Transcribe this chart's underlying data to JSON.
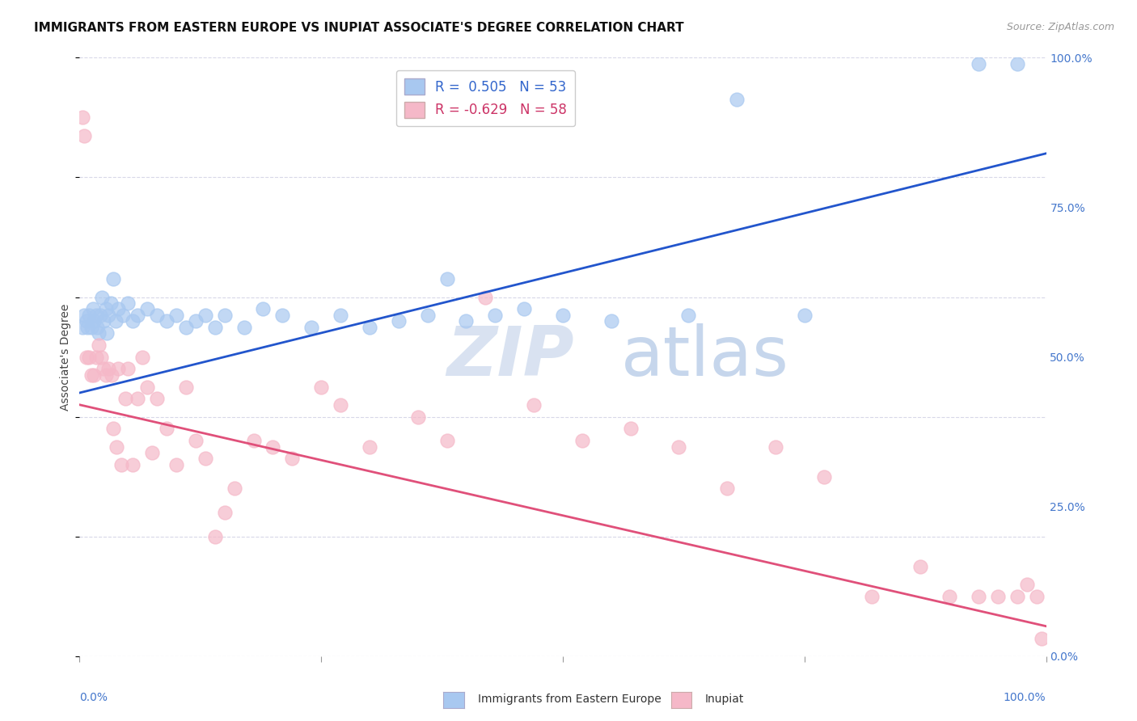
{
  "title": "IMMIGRANTS FROM EASTERN EUROPE VS INUPIAT ASSOCIATE'S DEGREE CORRELATION CHART",
  "source": "Source: ZipAtlas.com",
  "ylabel": "Associate's Degree",
  "legend_label1": "Immigrants from Eastern Europe",
  "legend_label2": "Inupiat",
  "R1": 0.505,
  "N1": 53,
  "R2": -0.629,
  "N2": 58,
  "blue_color": "#a8c8f0",
  "pink_color": "#f5b8c8",
  "blue_line_color": "#2255cc",
  "pink_line_color": "#e0507a",
  "watermark_zip": "ZIP",
  "watermark_atlas": "atlas",
  "blue_scatter_x": [
    0.3,
    0.5,
    0.7,
    0.8,
    1.0,
    1.2,
    1.4,
    1.5,
    1.7,
    1.8,
    2.0,
    2.1,
    2.3,
    2.5,
    2.7,
    2.8,
    3.0,
    3.2,
    3.5,
    3.7,
    4.0,
    4.5,
    5.0,
    5.5,
    6.0,
    7.0,
    8.0,
    9.0,
    10.0,
    11.0,
    12.0,
    13.0,
    14.0,
    15.0,
    17.0,
    19.0,
    21.0,
    24.0,
    27.0,
    30.0,
    33.0,
    36.0,
    38.0,
    40.0,
    43.0,
    46.0,
    50.0,
    55.0,
    63.0,
    68.0,
    75.0,
    93.0,
    97.0
  ],
  "blue_scatter_y": [
    55.0,
    57.0,
    56.0,
    55.0,
    57.0,
    55.0,
    58.0,
    56.0,
    57.0,
    55.0,
    54.0,
    57.0,
    60.0,
    56.0,
    58.0,
    54.0,
    57.0,
    59.0,
    63.0,
    56.0,
    58.0,
    57.0,
    59.0,
    56.0,
    57.0,
    58.0,
    57.0,
    56.0,
    57.0,
    55.0,
    56.0,
    57.0,
    55.0,
    57.0,
    55.0,
    58.0,
    57.0,
    55.0,
    57.0,
    55.0,
    56.0,
    57.0,
    63.0,
    56.0,
    57.0,
    58.0,
    57.0,
    56.0,
    57.0,
    93.0,
    57.0,
    99.0,
    99.0
  ],
  "pink_scatter_x": [
    0.3,
    0.5,
    0.7,
    1.0,
    1.2,
    1.5,
    1.7,
    2.0,
    2.2,
    2.5,
    2.7,
    3.0,
    3.3,
    3.5,
    3.8,
    4.0,
    4.3,
    4.7,
    5.0,
    5.5,
    6.0,
    6.5,
    7.0,
    7.5,
    8.0,
    9.0,
    10.0,
    11.0,
    12.0,
    13.0,
    14.0,
    15.0,
    16.0,
    18.0,
    20.0,
    22.0,
    25.0,
    27.0,
    30.0,
    35.0,
    38.0,
    42.0,
    47.0,
    52.0,
    57.0,
    62.0,
    67.0,
    72.0,
    77.0,
    82.0,
    87.0,
    90.0,
    93.0,
    95.0,
    97.0,
    98.0,
    99.0,
    99.5
  ],
  "pink_scatter_y": [
    90.0,
    87.0,
    50.0,
    50.0,
    47.0,
    47.0,
    50.0,
    52.0,
    50.0,
    48.0,
    47.0,
    48.0,
    47.0,
    38.0,
    35.0,
    48.0,
    32.0,
    43.0,
    48.0,
    32.0,
    43.0,
    50.0,
    45.0,
    34.0,
    43.0,
    38.0,
    32.0,
    45.0,
    36.0,
    33.0,
    20.0,
    24.0,
    28.0,
    36.0,
    35.0,
    33.0,
    45.0,
    42.0,
    35.0,
    40.0,
    36.0,
    60.0,
    42.0,
    36.0,
    38.0,
    35.0,
    28.0,
    35.0,
    30.0,
    10.0,
    15.0,
    10.0,
    10.0,
    10.0,
    10.0,
    12.0,
    10.0,
    3.0
  ],
  "blue_line_x0": 0.0,
  "blue_line_x1": 100.0,
  "blue_line_y0": 44.0,
  "blue_line_y1": 84.0,
  "pink_line_x0": 0.0,
  "pink_line_x1": 100.0,
  "pink_line_y0": 42.0,
  "pink_line_y1": 5.0,
  "xmin": 0.0,
  "xmax": 100.0,
  "ymin": 0.0,
  "ymax": 100.0,
  "figsize": [
    14.06,
    8.92
  ],
  "dpi": 100,
  "grid_color": "#d8d8e8",
  "background_color": "#ffffff",
  "title_fontsize": 11,
  "axis_label_fontsize": 10,
  "tick_fontsize": 10,
  "legend_fontsize": 12
}
